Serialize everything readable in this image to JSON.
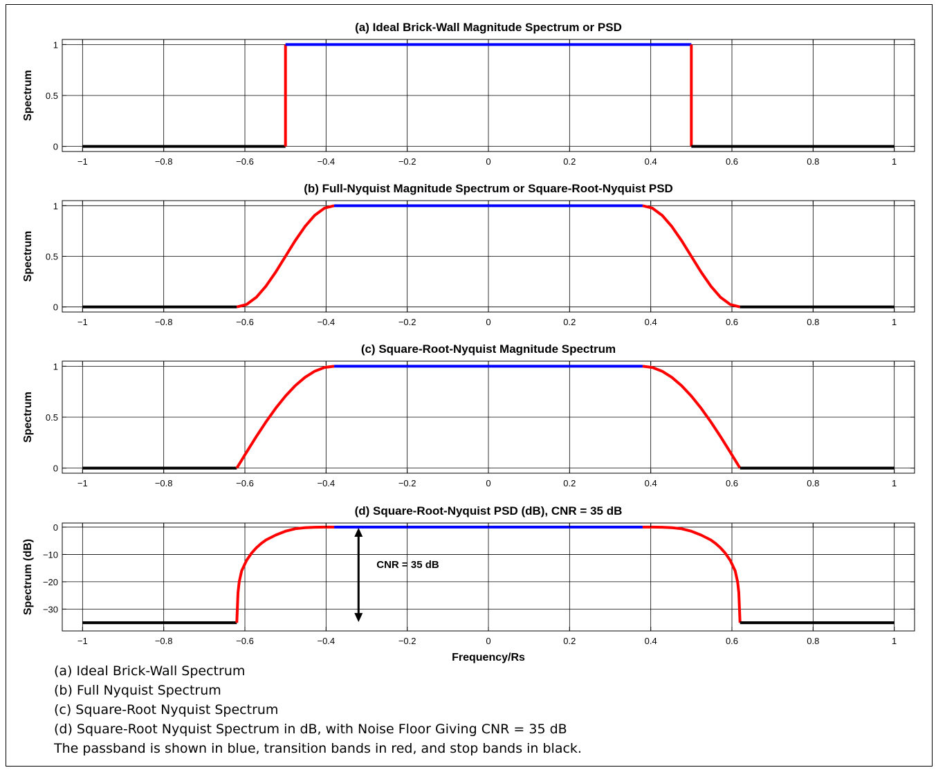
{
  "chart_data": [
    {
      "type": "line",
      "title": "(a) Ideal Brick-Wall Magnitude Spectrum or PSD",
      "ylabel": "Spectrum",
      "xlabel": "",
      "xlim": [
        -1.05,
        1.05
      ],
      "ylim": [
        -0.05,
        1.05
      ],
      "xticks": [
        -1,
        -0.8,
        -0.6,
        -0.4,
        -0.2,
        0,
        0.2,
        0.4,
        0.6,
        0.8,
        1
      ],
      "xtick_labels": [
        "−1",
        "−0.8",
        "−0.6",
        "−0.4",
        "−0.2",
        "0",
        "0.2",
        "0.4",
        "0.6",
        "0.8",
        "1"
      ],
      "yticks": [
        0,
        0.5,
        1
      ],
      "ytick_labels": [
        "0",
        "0.5",
        "1"
      ],
      "grid": true,
      "series": [
        {
          "band": "stop",
          "color": "#000000",
          "x": [
            -1,
            -0.5
          ],
          "y": [
            0,
            0
          ]
        },
        {
          "band": "transition",
          "color": "#ff0000",
          "x": [
            -0.5,
            -0.5
          ],
          "y": [
            0,
            1
          ]
        },
        {
          "band": "pass",
          "color": "#0000ff",
          "x": [
            -0.5,
            0.5
          ],
          "y": [
            1,
            1
          ]
        },
        {
          "band": "transition",
          "color": "#ff0000",
          "x": [
            0.5,
            0.5
          ],
          "y": [
            1,
            0
          ]
        },
        {
          "band": "stop",
          "color": "#000000",
          "x": [
            0.5,
            1
          ],
          "y": [
            0,
            0
          ]
        }
      ]
    },
    {
      "type": "line",
      "title": "(b) Full-Nyquist Magnitude Spectrum or Square-Root-Nyquist PSD",
      "ylabel": "Spectrum",
      "xlabel": "",
      "xlim": [
        -1.05,
        1.05
      ],
      "ylim": [
        -0.05,
        1.05
      ],
      "xticks": [
        -1,
        -0.8,
        -0.6,
        -0.4,
        -0.2,
        0,
        0.2,
        0.4,
        0.6,
        0.8,
        1
      ],
      "xtick_labels": [
        "−1",
        "−0.8",
        "−0.6",
        "−0.4",
        "−0.2",
        "0",
        "0.2",
        "0.4",
        "0.6",
        "0.8",
        "1"
      ],
      "yticks": [
        0,
        0.5,
        1
      ],
      "ytick_labels": [
        "0",
        "0.5",
        "1"
      ],
      "grid": true,
      "series": [
        {
          "band": "stop",
          "color": "#000000",
          "x": [
            -1,
            -0.62
          ],
          "y": [
            0,
            0
          ]
        },
        {
          "band": "transition",
          "color": "#ff0000",
          "x": [
            -0.62,
            -0.596,
            -0.572,
            -0.548,
            -0.524,
            -0.5,
            -0.476,
            -0.452,
            -0.428,
            -0.404,
            -0.38
          ],
          "y": [
            0,
            0.024,
            0.095,
            0.206,
            0.345,
            0.5,
            0.655,
            0.794,
            0.905,
            0.976,
            1
          ]
        },
        {
          "band": "pass",
          "color": "#0000ff",
          "x": [
            -0.38,
            0.38
          ],
          "y": [
            1,
            1
          ]
        },
        {
          "band": "transition",
          "color": "#ff0000",
          "x": [
            0.38,
            0.404,
            0.428,
            0.452,
            0.476,
            0.5,
            0.524,
            0.548,
            0.572,
            0.596,
            0.62
          ],
          "y": [
            1,
            0.976,
            0.905,
            0.794,
            0.655,
            0.5,
            0.345,
            0.206,
            0.095,
            0.024,
            0
          ]
        },
        {
          "band": "stop",
          "color": "#000000",
          "x": [
            0.62,
            1
          ],
          "y": [
            0,
            0
          ]
        }
      ]
    },
    {
      "type": "line",
      "title": "(c) Square-Root-Nyquist Magnitude Spectrum",
      "ylabel": "Spectrum",
      "xlabel": "",
      "xlim": [
        -1.05,
        1.05
      ],
      "ylim": [
        -0.05,
        1.05
      ],
      "xticks": [
        -1,
        -0.8,
        -0.6,
        -0.4,
        -0.2,
        0,
        0.2,
        0.4,
        0.6,
        0.8,
        1
      ],
      "xtick_labels": [
        "−1",
        "−0.8",
        "−0.6",
        "−0.4",
        "−0.2",
        "0",
        "0.2",
        "0.4",
        "0.6",
        "0.8",
        "1"
      ],
      "yticks": [
        0,
        0.5,
        1
      ],
      "ytick_labels": [
        "0",
        "0.5",
        "1"
      ],
      "grid": true,
      "series": [
        {
          "band": "stop",
          "color": "#000000",
          "x": [
            -1,
            -0.62
          ],
          "y": [
            0,
            0
          ]
        },
        {
          "band": "transition",
          "color": "#ff0000",
          "x": [
            -0.62,
            -0.596,
            -0.572,
            -0.548,
            -0.524,
            -0.5,
            -0.476,
            -0.452,
            -0.428,
            -0.404,
            -0.38
          ],
          "y": [
            0,
            0.156,
            0.309,
            0.454,
            0.588,
            0.707,
            0.809,
            0.891,
            0.951,
            0.988,
            1
          ]
        },
        {
          "band": "pass",
          "color": "#0000ff",
          "x": [
            -0.38,
            0.38
          ],
          "y": [
            1,
            1
          ]
        },
        {
          "band": "transition",
          "color": "#ff0000",
          "x": [
            0.38,
            0.404,
            0.428,
            0.452,
            0.476,
            0.5,
            0.524,
            0.548,
            0.572,
            0.596,
            0.62
          ],
          "y": [
            1,
            0.988,
            0.951,
            0.891,
            0.809,
            0.707,
            0.588,
            0.454,
            0.309,
            0.156,
            0
          ]
        },
        {
          "band": "stop",
          "color": "#000000",
          "x": [
            0.62,
            1
          ],
          "y": [
            0,
            0
          ]
        }
      ]
    },
    {
      "type": "line",
      "title": "(d) Square-Root-Nyquist PSD (dB), CNR = 35 dB",
      "ylabel": "Spectrum (dB)",
      "xlabel": "Frequency/Rs",
      "xlim": [
        -1.05,
        1.05
      ],
      "ylim": [
        -38,
        1.5
      ],
      "xticks": [
        -1,
        -0.8,
        -0.6,
        -0.4,
        -0.2,
        0,
        0.2,
        0.4,
        0.6,
        0.8,
        1
      ],
      "xtick_labels": [
        "−1",
        "−0.8",
        "−0.6",
        "−0.4",
        "−0.2",
        "0",
        "0.2",
        "0.4",
        "0.6",
        "0.8",
        "1"
      ],
      "yticks": [
        -30,
        -20,
        -10,
        0
      ],
      "ytick_labels": [
        "−30",
        "−20",
        "−10",
        "0"
      ],
      "grid": true,
      "series": [
        {
          "band": "stop",
          "color": "#000000",
          "x": [
            -1,
            -0.62
          ],
          "y": [
            -35,
            -35
          ]
        },
        {
          "band": "transition",
          "color": "#ff0000",
          "x": [
            -0.62,
            -0.617,
            -0.614,
            -0.608,
            -0.596,
            -0.584,
            -0.572,
            -0.56,
            -0.548,
            -0.524,
            -0.5,
            -0.476,
            -0.452,
            -0.428,
            -0.404,
            -0.38
          ],
          "y": [
            -35,
            -24,
            -20,
            -16,
            -12.2,
            -9.6,
            -7.6,
            -6,
            -4.7,
            -2.9,
            -1.5,
            -0.6,
            -0.2,
            -0.05,
            0,
            0
          ]
        },
        {
          "band": "pass",
          "color": "#0000ff",
          "x": [
            -0.38,
            0.38
          ],
          "y": [
            0,
            0
          ]
        },
        {
          "band": "transition",
          "color": "#ff0000",
          "x": [
            0.38,
            0.404,
            0.428,
            0.452,
            0.476,
            0.5,
            0.524,
            0.548,
            0.56,
            0.572,
            0.584,
            0.596,
            0.608,
            0.614,
            0.617,
            0.62
          ],
          "y": [
            0,
            0,
            -0.05,
            -0.2,
            -0.6,
            -1.5,
            -2.9,
            -4.7,
            -6,
            -7.6,
            -9.6,
            -12.2,
            -16,
            -20,
            -24,
            -35
          ]
        },
        {
          "band": "stop",
          "color": "#000000",
          "x": [
            0.62,
            1
          ],
          "y": [
            -35,
            -35
          ]
        }
      ],
      "annotation": {
        "text": "CNR = 35 dB",
        "arrow_x": -0.32,
        "arrow_from": 0,
        "arrow_to": -35
      }
    }
  ],
  "caption": {
    "lines": [
      "(a) Ideal Brick-Wall Spectrum",
      "(b) Full Nyquist Spectrum",
      "(c) Square-Root Nyquist Spectrum",
      "(d) Square-Root Nyquist Spectrum in dB, with Noise Floor Giving CNR = 35 dB",
      "The passband is shown in blue, transition bands in red, and stop bands in black."
    ]
  }
}
